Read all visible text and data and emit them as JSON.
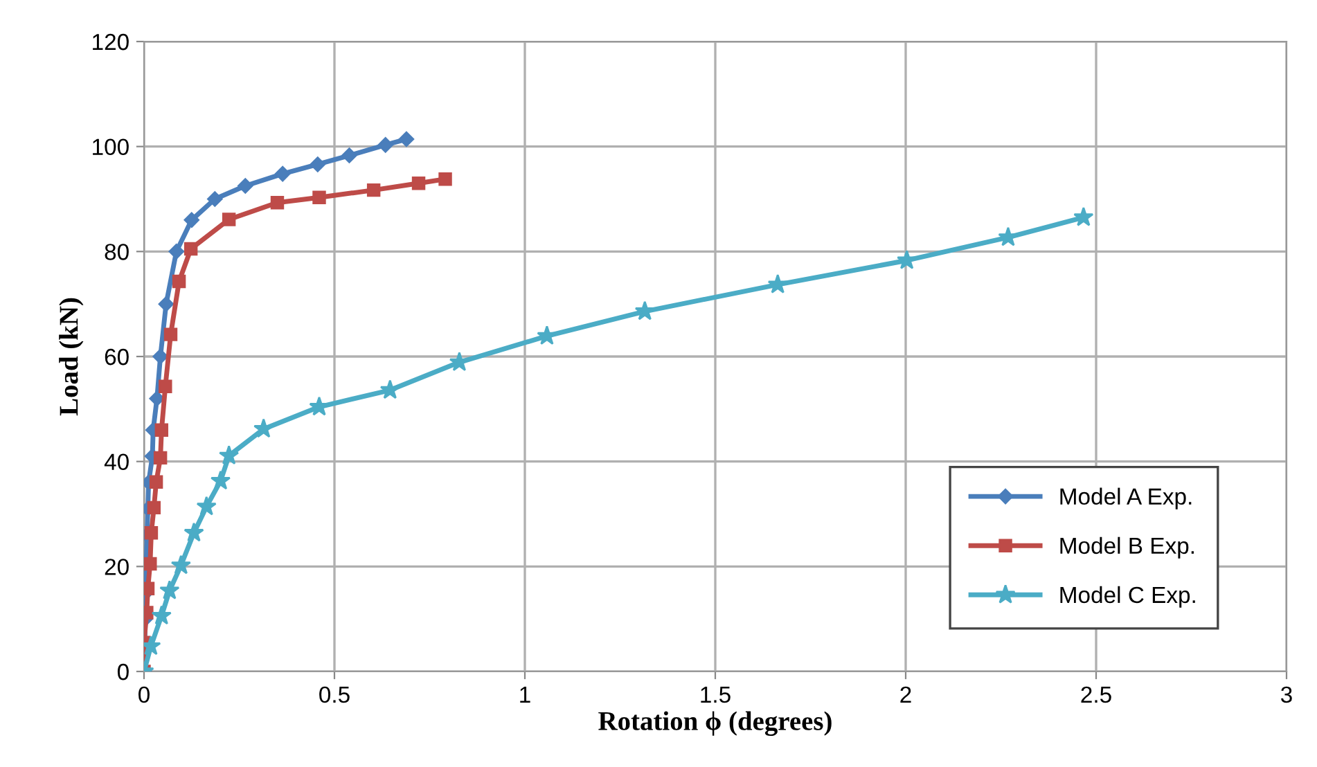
{
  "chart_data": {
    "type": "line",
    "xlabel": "Rotation ϕ (degrees)",
    "ylabel": "Load (kN)",
    "xlim": [
      0,
      3
    ],
    "xticks": [
      0,
      0.5,
      1,
      1.5,
      2,
      2.5,
      3
    ],
    "ylim": [
      0,
      120
    ],
    "yticks": [
      0,
      20,
      40,
      60,
      80,
      100,
      120
    ],
    "grid": true,
    "legend": "bottom right",
    "series": [
      {
        "name": "Model A Exp.",
        "color": "#4a7ebb",
        "marker": "diamond",
        "x": [
          0,
          0.002,
          0.003,
          0.005,
          0.006,
          0.008,
          0.01,
          0.012,
          0.022,
          0.024,
          0.034,
          0.043,
          0.058,
          0.085,
          0.125,
          0.186,
          0.266,
          0.364,
          0.456,
          0.539,
          0.634,
          0.689
        ],
        "values": [
          0,
          5,
          10,
          15,
          21,
          26,
          31,
          36,
          41,
          46,
          52,
          60,
          70,
          80,
          86,
          90,
          92.5,
          94.8,
          96.6,
          98.3,
          100.3,
          101.4
        ]
      },
      {
        "name": "Model B Exp.",
        "color": "#be4b48",
        "marker": "square",
        "x": [
          0,
          0,
          0.007,
          0.01,
          0.016,
          0.019,
          0.026,
          0.032,
          0.043,
          0.046,
          0.056,
          0.07,
          0.092,
          0.123,
          0.223,
          0.35,
          0.46,
          0.603,
          0.721,
          0.791
        ],
        "values": [
          0,
          5.5,
          11.2,
          15.8,
          20.5,
          26.4,
          31.2,
          36.1,
          40.7,
          46,
          54.3,
          64.2,
          74.3,
          80.5,
          86.1,
          89.3,
          90.3,
          91.7,
          93,
          93.8
        ]
      },
      {
        "name": "Model C Exp.",
        "color": "#4bacc6",
        "marker": "star",
        "x": [
          0,
          0.018,
          0.046,
          0.067,
          0.097,
          0.131,
          0.164,
          0.201,
          0.223,
          0.314,
          0.46,
          0.646,
          0.828,
          1.058,
          1.315,
          1.664,
          2.003,
          2.269,
          2.467
        ],
        "values": [
          0,
          4.8,
          10.6,
          15.4,
          20.2,
          26.4,
          31.4,
          36.3,
          41.1,
          46.2,
          50.4,
          53.6,
          58.9,
          63.9,
          68.6,
          73.7,
          78.3,
          82.7,
          86.5
        ]
      }
    ]
  }
}
